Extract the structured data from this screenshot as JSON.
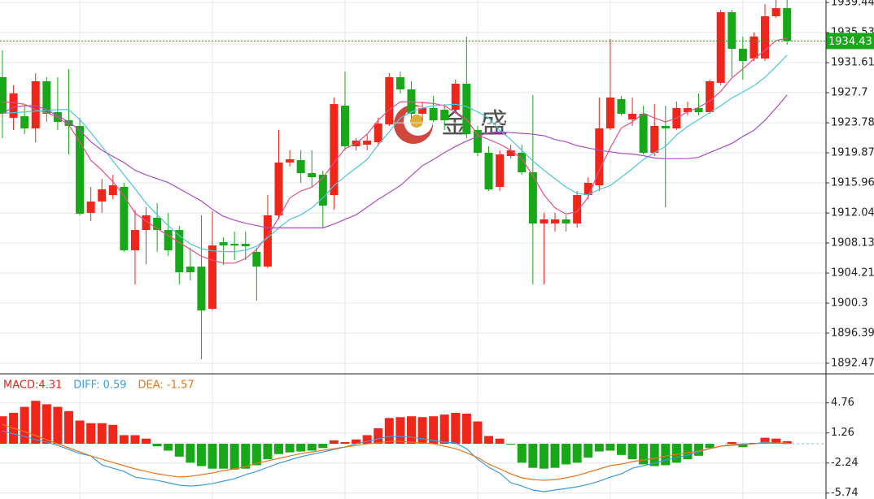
{
  "chart_data": [
    {
      "type": "candlestick",
      "ylim": [
        1891.09,
        1939.77
      ],
      "yticks": [
        1892.47,
        1896.39,
        1900.3,
        1904.21,
        1908.13,
        1912.04,
        1915.96,
        1919.87,
        1923.78,
        1927.7,
        1931.61,
        1935.53,
        1939.44
      ],
      "grid": true,
      "up_color": "#f0261b",
      "down_color": "#17a817",
      "last_price": 1934.43,
      "last_price_color": "#17a817",
      "open": [
        1929.72,
        1924.43,
        1924.64,
        1923.05,
        1929.19,
        1925.17,
        1924.11,
        1923.37,
        1912.05,
        1913.53,
        1914.37,
        1915.43,
        1907.18,
        1909.82,
        1911.41,
        1909.82,
        1909.82,
        1905.06,
        1905.06,
        1899.56,
        1908.23,
        1908.02,
        1908.02,
        1906.97,
        1905.06,
        1911.73,
        1918.61,
        1918.92,
        1917.23,
        1917.02,
        1914.37,
        1926.01,
        1920.72,
        1920.93,
        1921.25,
        1923.58,
        1929.72,
        1928.13,
        1924.96,
        1925.7,
        1925.48,
        1925.48,
        1928.87,
        1922.84,
        1919.88,
        1915.43,
        1919.45,
        1919.88,
        1917.34,
        1910.67,
        1910.67,
        1911.2,
        1910.67,
        1914.37,
        1915.64,
        1923.05,
        1926.86,
        1924.21,
        1924.96,
        1919.88,
        1923.37,
        1923.05,
        1925.17,
        1925.7,
        1925.17,
        1928.98,
        1938.18,
        1933.42,
        1932.15,
        1932.15,
        1937.65,
        1938.71
      ],
      "high": [
        1933.21,
        1928.66,
        1926.01,
        1930.25,
        1929.72,
        1929.72,
        1930.77,
        1924.43,
        1915.43,
        1916.49,
        1917.02,
        1915.96,
        1912.47,
        1912.79,
        1913.32,
        1912.05,
        1910.35,
        1907.5,
        1911.73,
        1912.26,
        1908.87,
        1909.61,
        1909.61,
        1907.5,
        1914.37,
        1922.84,
        1920.19,
        1920.19,
        1920.19,
        1917.55,
        1927.07,
        1930.46,
        1921.78,
        1922.31,
        1924.43,
        1930.25,
        1930.46,
        1929.19,
        1926.54,
        1927.28,
        1926.22,
        1929.4,
        1935.01,
        1923.37,
        1920.72,
        1920.19,
        1920.93,
        1920.93,
        1927.39,
        1912.05,
        1912.05,
        1911.73,
        1914.9,
        1916.7,
        1927.07,
        1934.69,
        1927.28,
        1927.07,
        1926.01,
        1926.22,
        1926.01,
        1926.54,
        1926.54,
        1927.6,
        1929.4,
        1938.5,
        1938.5,
        1935.01,
        1935.54,
        1939.24,
        1939.77,
        1939.77
      ],
      "low": [
        1921.78,
        1922.84,
        1922.31,
        1921.25,
        1923.9,
        1922.84,
        1919.66,
        1911.73,
        1910.99,
        1912.05,
        1913.84,
        1906.97,
        1902.73,
        1905.38,
        1906.97,
        1906.44,
        1902.73,
        1903.26,
        1892.99,
        1899.35,
        1905.27,
        1905.91,
        1905.91,
        1900.62,
        1904.85,
        1911.2,
        1918.08,
        1915.96,
        1915.43,
        1910.14,
        1912.47,
        1920.19,
        1920.19,
        1920.19,
        1920.72,
        1923.37,
        1927.6,
        1924.43,
        1924.11,
        1923.9,
        1922.84,
        1924.96,
        1921.78,
        1919.45,
        1914.9,
        1914.9,
        1919.13,
        1917.02,
        1902.73,
        1902.73,
        1909.61,
        1909.61,
        1910.14,
        1913.84,
        1914.9,
        1922.84,
        1924.74,
        1923.37,
        1919.66,
        1919.45,
        1912.79,
        1922.84,
        1924.74,
        1924.74,
        1924.96,
        1928.66,
        1929.72,
        1929.4,
        1931.83,
        1931.83,
        1937.44,
        1933.95
      ],
      "close": [
        1924.96,
        1927.6,
        1923.05,
        1929.19,
        1924.96,
        1923.9,
        1923.37,
        1911.94,
        1913.53,
        1915.11,
        1915.64,
        1907.18,
        1909.82,
        1911.73,
        1909.82,
        1907.18,
        1904.32,
        1904.32,
        1899.35,
        1907.81,
        1907.81,
        1907.81,
        1907.71,
        1905.06,
        1911.73,
        1918.61,
        1919.03,
        1917.23,
        1916.7,
        1913.0,
        1926.22,
        1920.72,
        1921.46,
        1921.46,
        1923.69,
        1929.72,
        1928.13,
        1924.96,
        1925.7,
        1924.11,
        1924.11,
        1928.87,
        1922.31,
        1919.88,
        1915.11,
        1919.66,
        1920.19,
        1917.34,
        1910.67,
        1911.2,
        1911.2,
        1910.67,
        1914.37,
        1915.96,
        1923.05,
        1927.07,
        1924.96,
        1924.96,
        1919.88,
        1923.37,
        1923.05,
        1925.7,
        1925.7,
        1925.17,
        1929.19,
        1938.18,
        1933.42,
        1931.83,
        1935.01,
        1937.65,
        1938.71,
        1934.43
      ],
      "series": [
        {
          "color": "#e8508a",
          "values": [
            1926.5,
            1926.4,
            1926.2,
            1925.5,
            1925.1,
            1924.5,
            1923.5,
            1921.3,
            1918.9,
            1917.6,
            1916.1,
            1914.3,
            1912.0,
            1911.0,
            1910.0,
            1909.1,
            1908.2,
            1907.3,
            1906.4,
            1905.9,
            1905.5,
            1905.5,
            1906.1,
            1907.3,
            1909.1,
            1911.4,
            1914.0,
            1914.9,
            1915.4,
            1916.6,
            1918.6,
            1920.4,
            1921.1,
            1922.3,
            1924.1,
            1925.5,
            1926.5,
            1926.5,
            1926.4,
            1926.3,
            1926.0,
            1925.1,
            1924.2,
            1922.2,
            1921.6,
            1921.0,
            1920.2,
            1919.1,
            1916.9,
            1914.4,
            1912.7,
            1911.9,
            1912.2,
            1914.1,
            1917.6,
            1920.5,
            1923.1,
            1923.9,
            1925.0,
            1924.4,
            1923.9,
            1924.4,
            1925.2,
            1925.8,
            1926.6,
            1927.9,
            1929.6,
            1930.8,
            1932.1,
            1933.2,
            1934.5,
            1934.8
          ]
        },
        {
          "color": "#4cc6df",
          "values": [
            1925.0,
            1925.1,
            1925.2,
            1925.3,
            1925.4,
            1925.5,
            1925.5,
            1924.2,
            1922.5,
            1920.7,
            1918.8,
            1917.0,
            1915.2,
            1913.3,
            1911.8,
            1910.4,
            1909.1,
            1908.0,
            1907.4,
            1907.1,
            1907.0,
            1907.0,
            1907.2,
            1907.7,
            1908.8,
            1910.1,
            1911.2,
            1911.8,
            1912.7,
            1914.0,
            1915.6,
            1916.8,
            1917.9,
            1919.0,
            1920.9,
            1922.6,
            1924.4,
            1925.2,
            1925.7,
            1926.0,
            1926.1,
            1926.2,
            1925.9,
            1925.2,
            1924.4,
            1922.8,
            1921.6,
            1920.2,
            1918.8,
            1917.6,
            1916.5,
            1915.4,
            1914.6,
            1914.4,
            1915.1,
            1915.6,
            1916.7,
            1917.8,
            1919.0,
            1919.9,
            1920.7,
            1922.2,
            1923.3,
            1924.2,
            1925.1,
            1926.0,
            1927.0,
            1927.8,
            1928.6,
            1929.7,
            1931.1,
            1932.6
          ]
        },
        {
          "color": "#b04cc6",
          "values": [
            1925.0,
            1925.8,
            1926.0,
            1926.0,
            1925.5,
            1924.7,
            1923.9,
            1922.8,
            1921.3,
            1920.2,
            1919.4,
            1918.6,
            1917.6,
            1917.0,
            1916.5,
            1916.0,
            1915.2,
            1914.4,
            1913.6,
            1912.5,
            1911.6,
            1911.1,
            1910.7,
            1910.4,
            1910.1,
            1910.1,
            1910.1,
            1910.1,
            1910.1,
            1910.1,
            1910.6,
            1911.2,
            1911.8,
            1912.8,
            1913.8,
            1914.7,
            1915.6,
            1916.9,
            1918.2,
            1919.0,
            1919.9,
            1920.7,
            1921.4,
            1922.0,
            1922.5,
            1922.6,
            1922.5,
            1922.4,
            1922.3,
            1922.1,
            1921.6,
            1921.3,
            1920.8,
            1920.5,
            1920.2,
            1920.0,
            1919.8,
            1919.7,
            1919.5,
            1919.2,
            1919.1,
            1919.1,
            1919.1,
            1919.3,
            1919.9,
            1920.5,
            1921.1,
            1922.0,
            1922.8,
            1924.1,
            1925.7,
            1927.4
          ]
        }
      ]
    },
    {
      "type": "macd",
      "ylim": [
        -6.43,
        8.14
      ],
      "yticks": [
        -5.74,
        -2.24,
        1.26,
        4.76
      ],
      "legend": [
        {
          "label": "MACD:4.31",
          "color": "#e8261b"
        },
        {
          "label": "DIFF: 0.59",
          "color": "#3c9be2"
        },
        {
          "label": "DEA: -1.57",
          "color": "#ee7418"
        }
      ],
      "up_color": "#f0261b",
      "down_color": "#17a817",
      "histogram": [
        3.2,
        3.6,
        4.3,
        5.0,
        4.6,
        4.3,
        3.8,
        2.7,
        2.4,
        2.4,
        2.2,
        1.0,
        1.0,
        0.6,
        -0.3,
        -0.8,
        -1.5,
        -2.2,
        -2.6,
        -2.9,
        -2.9,
        -3.0,
        -2.9,
        -2.5,
        -1.8,
        -1.2,
        -1.0,
        -0.9,
        -0.8,
        -0.5,
        0.4,
        0.2,
        0.5,
        1.0,
        1.8,
        3.0,
        3.1,
        3.2,
        3.1,
        3.2,
        3.4,
        3.6,
        3.5,
        2.6,
        0.9,
        0.6,
        -0.1,
        -2.2,
        -2.8,
        -2.9,
        -2.8,
        -2.4,
        -2.2,
        -1.6,
        -0.9,
        -0.8,
        -1.3,
        -1.8,
        -2.4,
        -2.6,
        -2.5,
        -2.2,
        -1.8,
        -1.4,
        -0.5,
        0.0,
        0.2,
        -0.4,
        0.1,
        0.7,
        0.6,
        0.3
      ],
      "series": [
        {
          "color": "#3c9be2",
          "values": [
            1.51,
            1.14,
            0.85,
            0.47,
            0.19,
            -0.19,
            -0.66,
            -1.14,
            -1.42,
            -2.46,
            -2.84,
            -3.22,
            -3.88,
            -4.07,
            -4.26,
            -4.54,
            -4.82,
            -4.92,
            -4.82,
            -4.64,
            -4.35,
            -4.07,
            -3.6,
            -3.22,
            -2.74,
            -2.27,
            -1.89,
            -1.51,
            -1.23,
            -0.95,
            -0.66,
            -0.38,
            0.0,
            0.28,
            0.57,
            0.85,
            0.85,
            0.76,
            0.57,
            0.38,
            0.19,
            0.09,
            -0.57,
            -1.8,
            -2.74,
            -3.41,
            -4.54,
            -4.92,
            -5.39,
            -5.58,
            -5.39,
            -5.2,
            -5.01,
            -4.73,
            -4.35,
            -3.88,
            -3.5,
            -2.84,
            -2.55,
            -2.27,
            -1.89,
            -1.61,
            -1.32,
            -0.95,
            -0.57,
            -0.28,
            -0.19,
            -0.09,
            0.0,
            0.19,
            0.09,
            0.0
          ]
        },
        {
          "color": "#ee7418",
          "values": [
            2.27,
            1.8,
            1.42,
            0.95,
            0.47,
            0.0,
            -0.47,
            -0.95,
            -1.42,
            -1.8,
            -2.18,
            -2.55,
            -2.93,
            -3.22,
            -3.5,
            -3.69,
            -3.88,
            -3.78,
            -3.6,
            -3.41,
            -3.12,
            -2.93,
            -2.65,
            -2.27,
            -1.99,
            -1.7,
            -1.42,
            -1.14,
            -0.95,
            -0.76,
            -0.57,
            -0.38,
            -0.19,
            0.0,
            0.09,
            0.28,
            0.28,
            0.19,
            0.09,
            0.0,
            -0.28,
            -0.57,
            -1.04,
            -1.61,
            -2.37,
            -2.93,
            -3.5,
            -3.97,
            -4.16,
            -4.26,
            -4.16,
            -3.97,
            -3.69,
            -3.31,
            -2.93,
            -2.55,
            -2.37,
            -2.08,
            -1.89,
            -1.7,
            -1.42,
            -1.23,
            -1.04,
            -0.85,
            -0.57,
            -0.28,
            -0.09,
            0.0,
            0.0,
            0.09,
            0.09,
            0.09
          ]
        }
      ]
    }
  ],
  "watermark": "金盛"
}
